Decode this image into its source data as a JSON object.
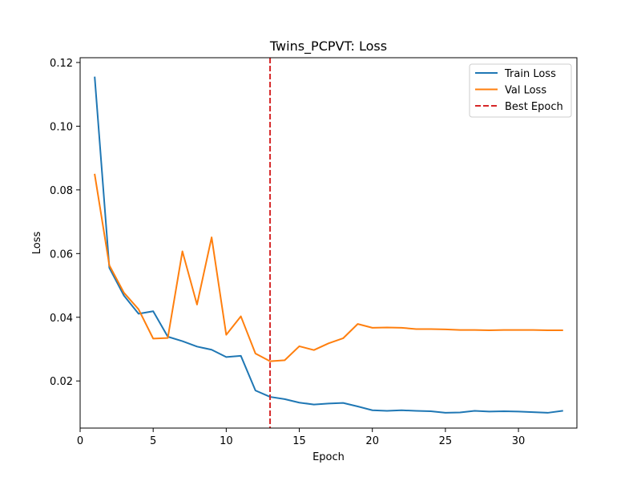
{
  "chart_data": {
    "type": "line",
    "title": "Twins_PCPVT: Loss",
    "xlabel": "Epoch",
    "ylabel": "Loss",
    "xlim": [
      0,
      34
    ],
    "ylim": [
      0.0052,
      0.1215
    ],
    "xticks": [
      0,
      5,
      10,
      15,
      20,
      25,
      30
    ],
    "yticks": [
      0.02,
      0.04,
      0.06,
      0.08,
      0.1,
      0.12
    ],
    "ytick_labels": [
      "0.02",
      "0.04",
      "0.06",
      "0.08",
      "0.10",
      "0.12"
    ],
    "grid": false,
    "legend_position": "top-right",
    "series": [
      {
        "name": "Train Loss",
        "color": "#1f77b4",
        "style": "solid",
        "x": [
          1,
          2,
          3,
          4,
          5,
          6,
          7,
          8,
          9,
          10,
          11,
          12,
          13,
          14,
          15,
          16,
          17,
          18,
          19,
          20,
          21,
          22,
          23,
          24,
          25,
          26,
          27,
          28,
          29,
          30,
          31,
          32,
          33
        ],
        "values": [
          0.1153,
          0.0555,
          0.0468,
          0.0411,
          0.0419,
          0.0339,
          0.0325,
          0.0308,
          0.0298,
          0.0275,
          0.0279,
          0.017,
          0.015,
          0.0143,
          0.0132,
          0.0126,
          0.0129,
          0.0131,
          0.012,
          0.0108,
          0.0106,
          0.0108,
          0.0106,
          0.0105,
          0.01,
          0.0101,
          0.0106,
          0.0104,
          0.0105,
          0.0104,
          0.0102,
          0.01,
          0.0106
        ]
      },
      {
        "name": "Val Loss",
        "color": "#ff7f0e",
        "style": "solid",
        "x": [
          1,
          2,
          3,
          4,
          5,
          6,
          7,
          8,
          9,
          10,
          11,
          12,
          13,
          14,
          15,
          16,
          17,
          18,
          19,
          20,
          21,
          22,
          23,
          24,
          25,
          26,
          27,
          28,
          29,
          30,
          31,
          32,
          33
        ],
        "values": [
          0.0848,
          0.0563,
          0.0477,
          0.0425,
          0.0333,
          0.0335,
          0.0607,
          0.044,
          0.0651,
          0.0345,
          0.0403,
          0.0286,
          0.0262,
          0.0265,
          0.0309,
          0.0297,
          0.0318,
          0.0334,
          0.0379,
          0.0367,
          0.0368,
          0.0367,
          0.0363,
          0.0363,
          0.0362,
          0.036,
          0.036,
          0.0359,
          0.036,
          0.036,
          0.036,
          0.0359,
          0.0359
        ]
      }
    ],
    "vlines": [
      {
        "name": "Best Epoch",
        "x": 13,
        "color": "#d62728",
        "style": "dashed"
      }
    ]
  }
}
